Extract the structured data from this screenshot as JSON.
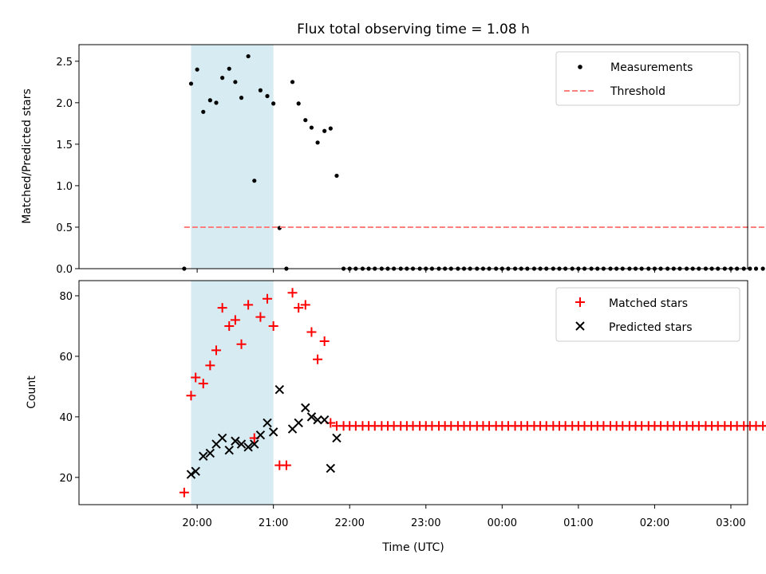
{
  "title": "Flux total observing time = 1.08 h",
  "colors": {
    "matched": "#ff0000",
    "predicted": "#000000",
    "measurement": "#000000",
    "threshold": "#ff7f7f",
    "span_fill": "#add8e6"
  },
  "chart_data": [
    {
      "type": "scatter",
      "title": "Flux total observing time = 1.08 h",
      "xlabel": "",
      "ylabel": "Matched/Predicted stars",
      "x_unit": "hours after 19:00 UTC",
      "xlim": [
        -0.55,
        8.22
      ],
      "ylim": [
        0,
        2.7
      ],
      "yticks": [
        0.0,
        0.5,
        1.0,
        1.5,
        2.0,
        2.5
      ],
      "ytick_labels": [
        "0.0",
        "0.5",
        "1.0",
        "1.5",
        "2.0",
        "2.5"
      ],
      "grid": false,
      "legend": "upper right",
      "shaded_span": [
        0.92,
        2.0
      ],
      "series": [
        {
          "name": "Measurements",
          "marker": "dot",
          "points": [
            [
              0.83,
              0.0
            ],
            [
              0.92,
              2.23
            ],
            [
              1.0,
              2.4
            ],
            [
              1.08,
              1.89
            ],
            [
              1.17,
              2.03
            ],
            [
              1.25,
              2.0
            ],
            [
              1.33,
              2.3
            ],
            [
              1.42,
              2.41
            ],
            [
              1.5,
              2.25
            ],
            [
              1.58,
              2.06
            ],
            [
              1.67,
              2.56
            ],
            [
              1.75,
              1.06
            ],
            [
              1.83,
              2.15
            ],
            [
              1.92,
              2.08
            ],
            [
              2.0,
              1.99
            ],
            [
              2.08,
              0.49
            ],
            [
              2.17,
              0.0
            ],
            [
              2.25,
              2.25
            ],
            [
              2.33,
              1.99
            ],
            [
              2.42,
              1.79
            ],
            [
              2.5,
              1.7
            ],
            [
              2.58,
              1.52
            ],
            [
              2.67,
              1.66
            ],
            [
              2.75,
              1.69
            ],
            [
              2.83,
              1.12
            ],
            [
              2.92,
              0
            ],
            [
              3.0,
              0
            ],
            [
              3.08,
              0
            ],
            [
              3.17,
              0
            ],
            [
              3.25,
              0
            ],
            [
              3.33,
              0
            ],
            [
              3.42,
              0
            ],
            [
              3.5,
              0
            ],
            [
              3.58,
              0
            ],
            [
              3.67,
              0
            ],
            [
              3.75,
              0
            ],
            [
              3.83,
              0
            ],
            [
              3.92,
              0
            ],
            [
              4.0,
              0
            ],
            [
              4.08,
              0
            ],
            [
              4.17,
              0
            ],
            [
              4.25,
              0
            ],
            [
              4.33,
              0
            ],
            [
              4.42,
              0
            ],
            [
              4.5,
              0
            ],
            [
              4.58,
              0
            ],
            [
              4.67,
              0
            ],
            [
              4.75,
              0
            ],
            [
              4.83,
              0
            ],
            [
              4.92,
              0
            ],
            [
              5.0,
              0
            ],
            [
              5.08,
              0
            ],
            [
              5.17,
              0
            ],
            [
              5.25,
              0
            ],
            [
              5.33,
              0
            ],
            [
              5.42,
              0
            ],
            [
              5.5,
              0
            ],
            [
              5.58,
              0
            ],
            [
              5.67,
              0
            ],
            [
              5.75,
              0
            ],
            [
              5.83,
              0
            ],
            [
              5.92,
              0
            ],
            [
              6.0,
              0
            ],
            [
              6.08,
              0
            ],
            [
              6.17,
              0
            ],
            [
              6.25,
              0
            ],
            [
              6.33,
              0
            ],
            [
              6.42,
              0
            ],
            [
              6.5,
              0
            ],
            [
              6.58,
              0
            ],
            [
              6.67,
              0
            ],
            [
              6.75,
              0
            ],
            [
              6.83,
              0
            ],
            [
              6.92,
              0
            ],
            [
              7.0,
              0
            ],
            [
              7.08,
              0
            ],
            [
              7.17,
              0
            ],
            [
              7.25,
              0
            ],
            [
              7.33,
              0
            ],
            [
              7.42,
              0
            ],
            [
              7.5,
              0
            ],
            [
              7.58,
              0
            ],
            [
              7.67,
              0
            ],
            [
              7.75,
              0
            ],
            [
              7.83,
              0
            ],
            [
              7.92,
              0
            ],
            [
              8.0,
              0
            ],
            [
              8.08,
              0
            ],
            [
              8.17,
              0
            ],
            [
              8.25,
              0
            ],
            [
              8.33,
              0
            ],
            [
              8.42,
              0
            ],
            [
              8.5,
              0
            ]
          ]
        },
        {
          "name": "Threshold",
          "marker": "dashed-line",
          "points": [
            [
              0.83,
              0.5
            ],
            [
              8.5,
              0.5
            ]
          ]
        }
      ]
    },
    {
      "type": "scatter",
      "xlabel": "Time (UTC)",
      "ylabel": "Count",
      "x_unit": "hours after 19:00 UTC",
      "xlim": [
        -0.55,
        8.22
      ],
      "ylim": [
        11,
        85
      ],
      "yticks": [
        20,
        40,
        60,
        80
      ],
      "ytick_labels": [
        "20",
        "40",
        "60",
        "80"
      ],
      "xticks": [
        1,
        2,
        3,
        4,
        5,
        6,
        7,
        8
      ],
      "xtick_labels": [
        "20:00",
        "21:00",
        "22:00",
        "23:00",
        "00:00",
        "01:00",
        "02:00",
        "03:00"
      ],
      "grid": false,
      "legend": "upper right",
      "shaded_span": [
        0.92,
        2.0
      ],
      "series": [
        {
          "name": "Matched stars",
          "marker": "plus",
          "points": [
            [
              0.83,
              15
            ],
            [
              0.92,
              47
            ],
            [
              0.98,
              53
            ],
            [
              1.08,
              51
            ],
            [
              1.17,
              57
            ],
            [
              1.25,
              62
            ],
            [
              1.33,
              76
            ],
            [
              1.42,
              70
            ],
            [
              1.5,
              72
            ],
            [
              1.58,
              64
            ],
            [
              1.67,
              77
            ],
            [
              1.75,
              33
            ],
            [
              1.83,
              73
            ],
            [
              1.92,
              79
            ],
            [
              2.0,
              70
            ],
            [
              2.08,
              24
            ],
            [
              2.17,
              24
            ],
            [
              2.25,
              81
            ],
            [
              2.33,
              76
            ],
            [
              2.42,
              77
            ],
            [
              2.5,
              68
            ],
            [
              2.58,
              59
            ],
            [
              2.67,
              65
            ],
            [
              2.75,
              38
            ],
            [
              2.83,
              37
            ],
            [
              2.92,
              37
            ],
            [
              3.0,
              37
            ],
            [
              3.08,
              37
            ],
            [
              3.17,
              37
            ],
            [
              3.25,
              37
            ],
            [
              3.33,
              37
            ],
            [
              3.42,
              37
            ],
            [
              3.5,
              37
            ],
            [
              3.58,
              37
            ],
            [
              3.67,
              37
            ],
            [
              3.75,
              37
            ],
            [
              3.83,
              37
            ],
            [
              3.92,
              37
            ],
            [
              4.0,
              37
            ],
            [
              4.08,
              37
            ],
            [
              4.17,
              37
            ],
            [
              4.25,
              37
            ],
            [
              4.33,
              37
            ],
            [
              4.42,
              37
            ],
            [
              4.5,
              37
            ],
            [
              4.58,
              37
            ],
            [
              4.67,
              37
            ],
            [
              4.75,
              37
            ],
            [
              4.83,
              37
            ],
            [
              4.92,
              37
            ],
            [
              5.0,
              37
            ],
            [
              5.08,
              37
            ],
            [
              5.17,
              37
            ],
            [
              5.25,
              37
            ],
            [
              5.33,
              37
            ],
            [
              5.42,
              37
            ],
            [
              5.5,
              37
            ],
            [
              5.58,
              37
            ],
            [
              5.67,
              37
            ],
            [
              5.75,
              37
            ],
            [
              5.83,
              37
            ],
            [
              5.92,
              37
            ],
            [
              6.0,
              37
            ],
            [
              6.08,
              37
            ],
            [
              6.17,
              37
            ],
            [
              6.25,
              37
            ],
            [
              6.33,
              37
            ],
            [
              6.42,
              37
            ],
            [
              6.5,
              37
            ],
            [
              6.58,
              37
            ],
            [
              6.67,
              37
            ],
            [
              6.75,
              37
            ],
            [
              6.83,
              37
            ],
            [
              6.92,
              37
            ],
            [
              7.0,
              37
            ],
            [
              7.08,
              37
            ],
            [
              7.17,
              37
            ],
            [
              7.25,
              37
            ],
            [
              7.33,
              37
            ],
            [
              7.42,
              37
            ],
            [
              7.5,
              37
            ],
            [
              7.58,
              37
            ],
            [
              7.67,
              37
            ],
            [
              7.75,
              37
            ],
            [
              7.83,
              37
            ],
            [
              7.92,
              37
            ],
            [
              8.0,
              37
            ],
            [
              8.08,
              37
            ],
            [
              8.17,
              37
            ],
            [
              8.25,
              37
            ],
            [
              8.33,
              37
            ],
            [
              8.42,
              37
            ],
            [
              8.5,
              37
            ]
          ]
        },
        {
          "name": "Predicted stars",
          "marker": "x",
          "points": [
            [
              0.92,
              21
            ],
            [
              0.98,
              22
            ],
            [
              1.08,
              27
            ],
            [
              1.17,
              28
            ],
            [
              1.25,
              31
            ],
            [
              1.33,
              33
            ],
            [
              1.42,
              29
            ],
            [
              1.5,
              32
            ],
            [
              1.58,
              31
            ],
            [
              1.67,
              30
            ],
            [
              1.75,
              31
            ],
            [
              1.83,
              34
            ],
            [
              1.92,
              38
            ],
            [
              2.0,
              35
            ],
            [
              2.08,
              49
            ],
            [
              2.25,
              36
            ],
            [
              2.33,
              38
            ],
            [
              2.42,
              43
            ],
            [
              2.5,
              40
            ],
            [
              2.58,
              39
            ],
            [
              2.67,
              39
            ],
            [
              2.75,
              23
            ],
            [
              2.83,
              33
            ]
          ]
        }
      ]
    }
  ]
}
